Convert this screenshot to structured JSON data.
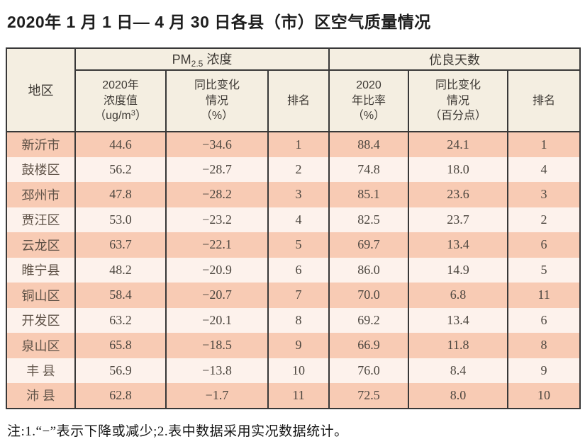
{
  "page": {
    "title": "2020年 1 月 1 日— 4 月 30 日各县（市）区空气质量情况",
    "note": "注:1.“−”表示下降或减少;2.表中数据采用实况数据统计。"
  },
  "colors": {
    "row_salmon": "#f8cbb4",
    "row_light": "#fdf2ec",
    "header_bg": "#f4eee1",
    "border": "#383838"
  },
  "table": {
    "header": {
      "region": "地区",
      "pm_group": {
        "pre": "PM",
        "sub": "2.5",
        "post": " 浓度"
      },
      "days_group": "优良天数",
      "pm_value": {
        "line1": "2020年",
        "line2": "浓度值",
        "line3_pre": "（ug/m",
        "line3_sup": "3",
        "line3_post": "）"
      },
      "pm_change": {
        "line1": "同比变化",
        "line2": "情况",
        "line3": "（%）"
      },
      "pm_rank": "排名",
      "days_rate": {
        "line1": "2020",
        "line2": "年比率",
        "line3": "（%）"
      },
      "days_change": {
        "line1": "同比变化",
        "line2": "情况",
        "line3": "（百分点）"
      },
      "days_rank": "排名"
    },
    "rows": [
      {
        "region": "新沂市",
        "pm_value": "44.6",
        "pm_change": "−34.6",
        "pm_rank": "1",
        "days_rate": "88.4",
        "days_change": "24.1",
        "days_rank": "1"
      },
      {
        "region": "鼓楼区",
        "pm_value": "56.2",
        "pm_change": "−28.7",
        "pm_rank": "2",
        "days_rate": "74.8",
        "days_change": "18.0",
        "days_rank": "4"
      },
      {
        "region": "邳州市",
        "pm_value": "47.8",
        "pm_change": "−28.2",
        "pm_rank": "3",
        "days_rate": "85.1",
        "days_change": "23.6",
        "days_rank": "3"
      },
      {
        "region": "贾汪区",
        "pm_value": "53.0",
        "pm_change": "−23.2",
        "pm_rank": "4",
        "days_rate": "82.5",
        "days_change": "23.7",
        "days_rank": "2"
      },
      {
        "region": "云龙区",
        "pm_value": "63.7",
        "pm_change": "−22.1",
        "pm_rank": "5",
        "days_rate": "69.7",
        "days_change": "13.4",
        "days_rank": "6"
      },
      {
        "region": "睢宁县",
        "pm_value": "48.2",
        "pm_change": "−20.9",
        "pm_rank": "6",
        "days_rate": "86.0",
        "days_change": "14.9",
        "days_rank": "5"
      },
      {
        "region": "铜山区",
        "pm_value": "58.4",
        "pm_change": "−20.7",
        "pm_rank": "7",
        "days_rate": "70.0",
        "days_change": "6.8",
        "days_rank": "11"
      },
      {
        "region": "开发区",
        "pm_value": "63.2",
        "pm_change": "−20.1",
        "pm_rank": "8",
        "days_rate": "69.2",
        "days_change": "13.4",
        "days_rank": "6"
      },
      {
        "region": "泉山区",
        "pm_value": "65.8",
        "pm_change": "−18.5",
        "pm_rank": "9",
        "days_rate": "66.9",
        "days_change": "11.8",
        "days_rank": "8"
      },
      {
        "region": "丰 县",
        "pm_value": "56.9",
        "pm_change": "−13.8",
        "pm_rank": "10",
        "days_rate": "76.0",
        "days_change": "8.4",
        "days_rank": "9"
      },
      {
        "region": "沛 县",
        "pm_value": "62.8",
        "pm_change": "−1.7",
        "pm_rank": "11",
        "days_rate": "72.5",
        "days_change": "8.0",
        "days_rank": "10"
      }
    ]
  }
}
